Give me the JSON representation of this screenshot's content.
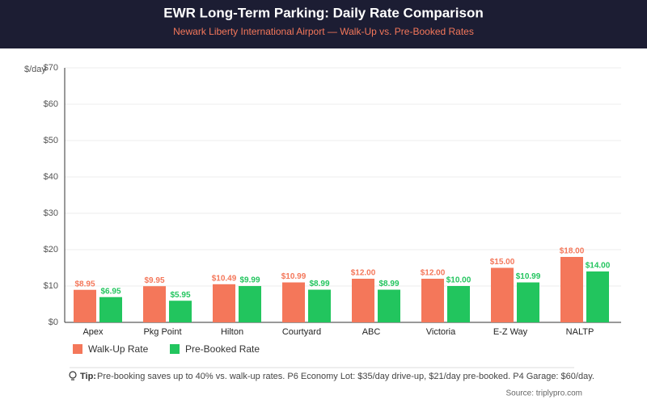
{
  "header": {
    "title": "EWR Long-Term Parking: Daily Rate Comparison",
    "subtitle": "Newark Liberty International Airport — Walk-Up vs. Pre-Booked Rates"
  },
  "chart_data": {
    "type": "bar",
    "y_label": "$/day",
    "categories": [
      "Apex",
      "Pkg Point",
      "Hilton",
      "Courtyard",
      "ABC",
      "Victoria",
      "E-Z Way",
      "NALTP"
    ],
    "series": [
      {
        "name": "Walk-Up Rate",
        "color": "#f4775a",
        "values": [
          8.95,
          9.95,
          10.49,
          10.99,
          12,
          12,
          15,
          18
        ],
        "value_labels": [
          "$8.95",
          "$9.95",
          "$10.49",
          "$10.99",
          "$12.00",
          "$12.00",
          "$15.00",
          "$18.00"
        ]
      },
      {
        "name": "Pre-Booked Rate",
        "color": "#22c55e",
        "values": [
          6.95,
          5.95,
          9.99,
          8.99,
          8.99,
          10,
          10.99,
          14
        ],
        "value_labels": [
          "$6.95",
          "$5.95",
          "$9.99",
          "$8.99",
          "$8.99",
          "$10.00",
          "$10.99",
          "$14.00"
        ]
      }
    ],
    "ylim": [
      0,
      70
    ],
    "yticks": [
      {
        "value": 0,
        "label": "$0"
      },
      {
        "value": 10,
        "label": "$10"
      },
      {
        "value": 20,
        "label": "$20"
      },
      {
        "value": 30,
        "label": "$30"
      },
      {
        "value": 40,
        "label": "$40"
      },
      {
        "value": 50,
        "label": "$50"
      },
      {
        "value": 60,
        "label": "$60"
      },
      {
        "value": 70,
        "label": "$70"
      }
    ],
    "grid": true,
    "legend": "bottom-left"
  },
  "tip": {
    "label": "Tip:",
    "text": "Pre-booking saves up to 40% vs. walk-up rates. P6 Economy Lot: $35/day drive-up, $21/day pre-booked. P4 Garage: $60/day."
  },
  "source": "Source: triplypro.com"
}
